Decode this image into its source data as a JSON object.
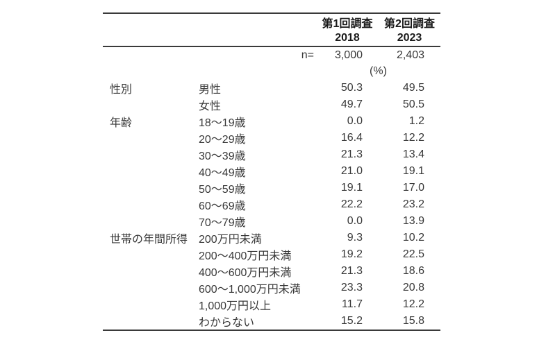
{
  "chart_data": {
    "type": "table",
    "surveys": [
      {
        "name": "第1回調査",
        "year": "2018",
        "n": "3,000"
      },
      {
        "name": "第2回調査",
        "year": "2023",
        "n": "2,403"
      }
    ],
    "n_label": "n=",
    "unit_label": "(%)",
    "rows": [
      {
        "category": "性別",
        "item": "男性",
        "v2018": "50.3",
        "v2023": "49.5"
      },
      {
        "category": "",
        "item": "女性",
        "v2018": "49.7",
        "v2023": "50.5"
      },
      {
        "category": "年齢",
        "item": "18〜19歳",
        "v2018": "0.0",
        "v2023": "1.2"
      },
      {
        "category": "",
        "item": "20〜29歳",
        "v2018": "16.4",
        "v2023": "12.2"
      },
      {
        "category": "",
        "item": "30〜39歳",
        "v2018": "21.3",
        "v2023": "13.4"
      },
      {
        "category": "",
        "item": "40〜49歳",
        "v2018": "21.0",
        "v2023": "19.1"
      },
      {
        "category": "",
        "item": "50〜59歳",
        "v2018": "19.1",
        "v2023": "17.0"
      },
      {
        "category": "",
        "item": "60〜69歳",
        "v2018": "22.2",
        "v2023": "23.2"
      },
      {
        "category": "",
        "item": "70〜79歳",
        "v2018": "0.0",
        "v2023": "13.9"
      },
      {
        "category": "世帯の年間所得",
        "item": "200万円未満",
        "v2018": "9.3",
        "v2023": "10.2"
      },
      {
        "category": "",
        "item": "200〜400万円未満",
        "v2018": "19.2",
        "v2023": "22.5"
      },
      {
        "category": "",
        "item": "400〜600万円未満",
        "v2018": "21.3",
        "v2023": "18.6"
      },
      {
        "category": "",
        "item": "600〜1,000万円未満",
        "v2018": "23.3",
        "v2023": "20.8"
      },
      {
        "category": "",
        "item": "1,000万円以上",
        "v2018": "11.7",
        "v2023": "12.2"
      },
      {
        "category": "",
        "item": "わからない",
        "v2018": "15.2",
        "v2023": "15.8"
      }
    ],
    "colors": {
      "text": "#383838",
      "header_text": "#1a1a1a",
      "rule": "#3a3a3a",
      "background": "#ffffff"
    }
  }
}
